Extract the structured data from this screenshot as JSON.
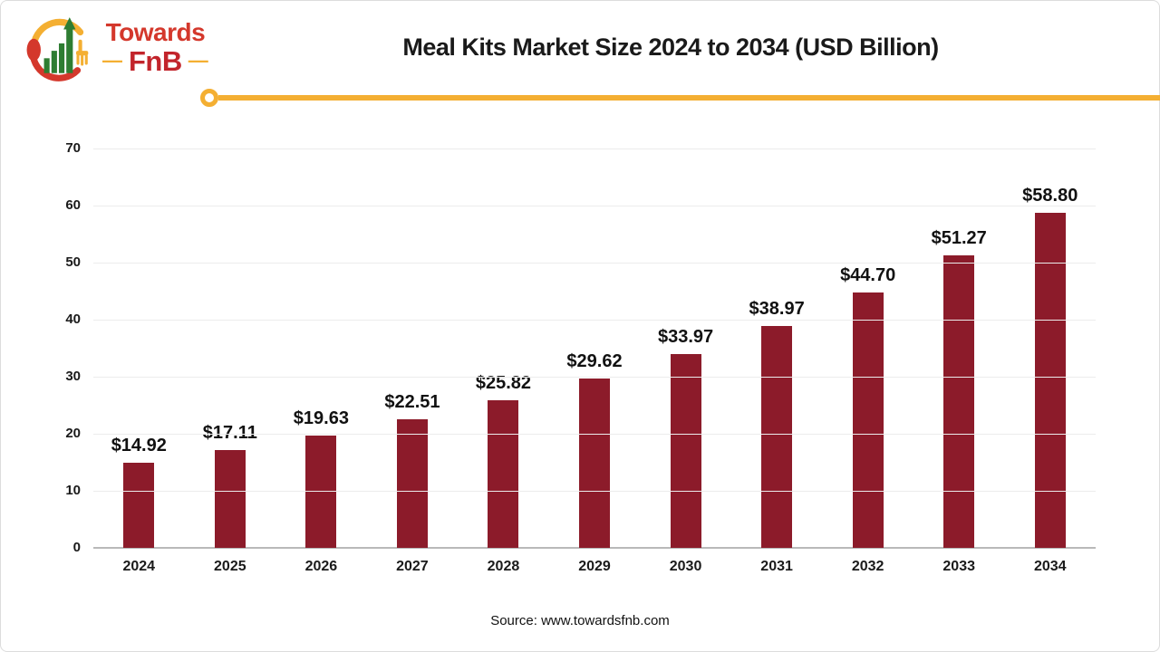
{
  "logo": {
    "brand_line1": "Towards",
    "brand_line2": "FnB",
    "dash": "—"
  },
  "header": {
    "title": "Meal Kits Market Size 2024 to 2034 (USD Billion)"
  },
  "footer": {
    "source": "Source: www.towardsfnb.com"
  },
  "colors": {
    "bar": "#8C1B2A",
    "accent_line": "#F4AF32",
    "grid": "#ECECEC",
    "baseline": "#B9B9B9",
    "logo_red": "#D4382C",
    "logo_dark_red": "#C2242B",
    "logo_green": "#2E7D32"
  },
  "chart_data": {
    "type": "bar",
    "title": "Meal Kits Market Size 2024 to 2034 (USD Billion)",
    "categories": [
      "2024",
      "2025",
      "2026",
      "2027",
      "2028",
      "2029",
      "2030",
      "2031",
      "2032",
      "2033",
      "2034"
    ],
    "values": [
      14.92,
      17.11,
      19.63,
      22.51,
      25.82,
      29.62,
      33.97,
      38.97,
      44.7,
      51.27,
      58.8
    ],
    "value_labels": [
      "$14.92",
      "$17.11",
      "$19.63",
      "$22.51",
      "$25.82",
      "$29.62",
      "$33.97",
      "$38.97",
      "$44.70",
      "$51.27",
      "$58.80"
    ],
    "xlabel": "",
    "ylabel": "",
    "ylim": [
      0,
      70
    ],
    "yticks": [
      0,
      10,
      20,
      30,
      40,
      50,
      60,
      70
    ],
    "grid": true,
    "legend": false,
    "bar_color": "#8C1B2A",
    "source": "Source: www.towardsfnb.com"
  }
}
